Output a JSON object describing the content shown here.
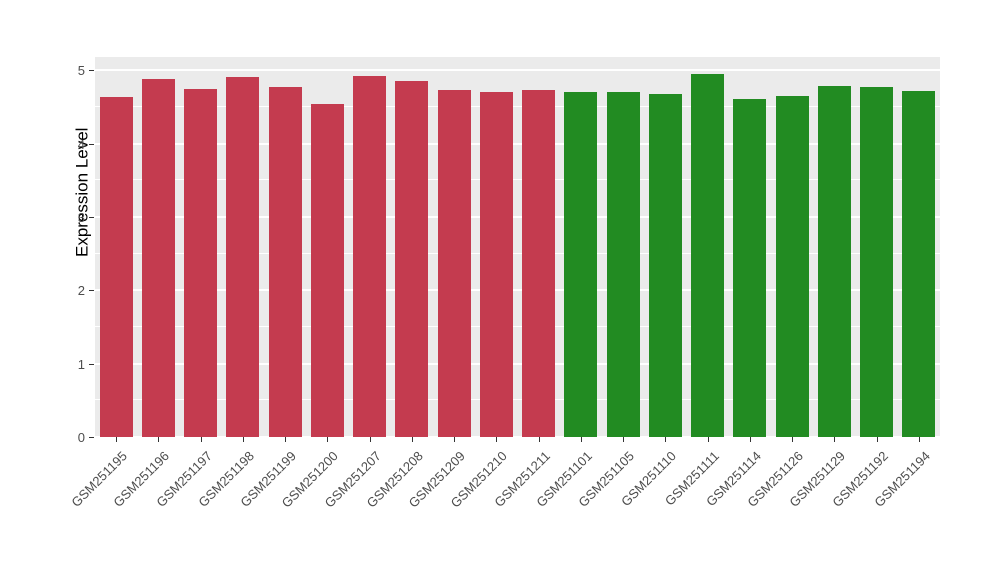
{
  "chart_data": {
    "type": "bar",
    "title": "",
    "xlabel": "",
    "ylabel": "Expression Level",
    "ylim": [
      0,
      5
    ],
    "y_ticks": [
      0,
      1,
      2,
      3,
      4,
      5
    ],
    "grid": true,
    "legend": "none",
    "categories": [
      "GSM251195",
      "GSM251196",
      "GSM251197",
      "GSM251198",
      "GSM251199",
      "GSM251200",
      "GSM251207",
      "GSM251208",
      "GSM251209",
      "GSM251210",
      "GSM251211",
      "GSM251101",
      "GSM251105",
      "GSM251110",
      "GSM251111",
      "GSM251114",
      "GSM251126",
      "GSM251129",
      "GSM251192",
      "GSM251194"
    ],
    "values": [
      4.63,
      4.88,
      4.75,
      4.91,
      4.77,
      4.54,
      4.92,
      4.85,
      4.73,
      4.7,
      4.73,
      4.7,
      4.7,
      4.68,
      4.95,
      4.61,
      4.65,
      4.78,
      4.77,
      4.72
    ],
    "bar_colors": [
      "#C43B4F",
      "#C43B4F",
      "#C43B4F",
      "#C43B4F",
      "#C43B4F",
      "#C43B4F",
      "#C43B4F",
      "#C43B4F",
      "#C43B4F",
      "#C43B4F",
      "#C43B4F",
      "#228B22",
      "#228B22",
      "#228B22",
      "#228B22",
      "#228B22",
      "#228B22",
      "#228B22",
      "#228B22",
      "#228B22"
    ],
    "groups": [
      {
        "name": "group-1-red",
        "color": "#C43B4F",
        "members": [
          "GSM251195",
          "GSM251196",
          "GSM251197",
          "GSM251198",
          "GSM251199",
          "GSM251200",
          "GSM251207",
          "GSM251208",
          "GSM251209",
          "GSM251210",
          "GSM251211"
        ]
      },
      {
        "name": "group-2-green",
        "color": "#228B22",
        "members": [
          "GSM251101",
          "GSM251105",
          "GSM251110",
          "GSM251111",
          "GSM251114",
          "GSM251126",
          "GSM251129",
          "GSM251192",
          "GSM251194"
        ]
      }
    ],
    "panel_background": "#EBEBEB",
    "gridline_color": "#FFFFFF"
  }
}
